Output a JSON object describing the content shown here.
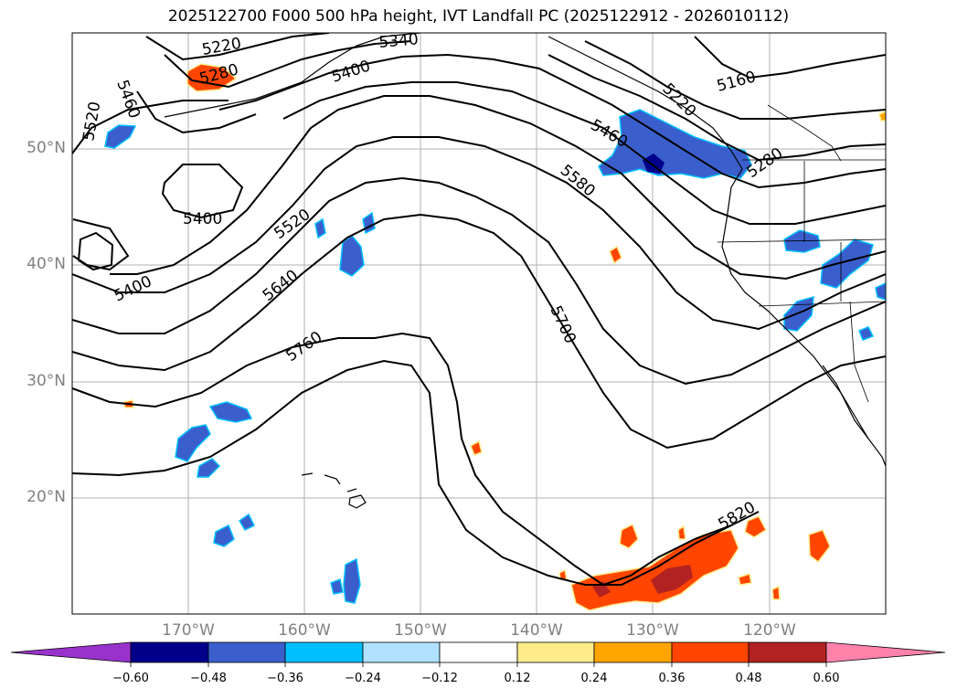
{
  "title": "2025122700 F000 500 hPa height, IVT Landfall PC (2025122912 - 2026010112)",
  "map": {
    "lon_range": [
      -180,
      -110
    ],
    "lat_range": [
      10,
      60
    ],
    "lat_labels": [
      "50°N",
      "40°N",
      "30°N",
      "20°N"
    ],
    "lon_labels": [
      "170°W",
      "160°W",
      "150°W",
      "140°W",
      "130°W",
      "120°W"
    ],
    "contour_labels": [
      "5220",
      "5340",
      "5280",
      "5400",
      "5460",
      "5520",
      "5400",
      "5400",
      "5520",
      "5640",
      "5760",
      "5580",
      "5460",
      "5220",
      "5160",
      "5280",
      "5700",
      "5820"
    ]
  },
  "colorbar": {
    "ticks": [
      "−0.60",
      "−0.48",
      "−0.36",
      "−0.24",
      "−0.12",
      "0.12",
      "0.24",
      "0.36",
      "0.48",
      "0.60"
    ],
    "colors": [
      "#9932cc",
      "#00008b",
      "#3a5fcd",
      "#00bfff",
      "#b0e2ff",
      "#ffffff",
      "#ffec8b",
      "#ffa500",
      "#ff4500",
      "#b22222",
      "#ff82ab"
    ]
  }
}
